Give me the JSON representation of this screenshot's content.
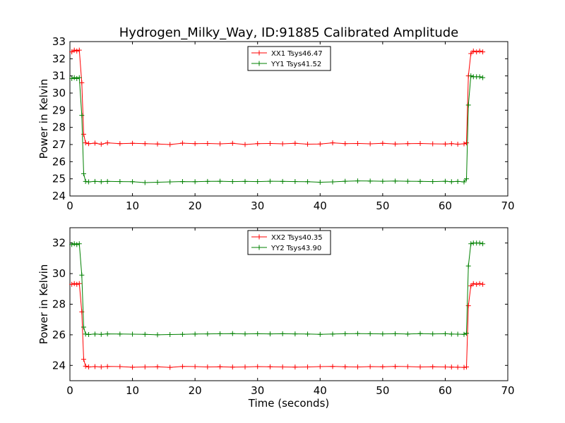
{
  "chart_data": [
    {
      "type": "line",
      "title": "Hydrogen_Milky_Way, ID:91885 Calibrated Amplitude",
      "xlabel": "",
      "ylabel": "Power in Kelvin",
      "xlim": [
        0,
        70
      ],
      "ylim": [
        24,
        33
      ],
      "xticks": [
        0,
        10,
        20,
        30,
        40,
        50,
        60,
        70
      ],
      "yticks": [
        24,
        25,
        26,
        27,
        28,
        29,
        30,
        31,
        32,
        33
      ],
      "legend": "upper-center",
      "grid": false,
      "series": [
        {
          "name": "XX1 Tsys46.47",
          "color": "#ff0000",
          "x": [
            0.3,
            0.7,
            1.1,
            1.5,
            1.9,
            2.2,
            2.5,
            3,
            4,
            5,
            6,
            8,
            10,
            12,
            14,
            16,
            18,
            20,
            22,
            24,
            26,
            28,
            30,
            32,
            34,
            36,
            38,
            40,
            42,
            44,
            46,
            48,
            50,
            52,
            54,
            56,
            58,
            60,
            61,
            62,
            63,
            63.4,
            63.7,
            64.1,
            64.5,
            65,
            65.5,
            66
          ],
          "y": [
            32.4,
            32.5,
            32.45,
            32.5,
            30.6,
            27.6,
            27.1,
            27.05,
            27.08,
            27.02,
            27.1,
            27.05,
            27.07,
            27.05,
            27.03,
            27.0,
            27.08,
            27.05,
            27.06,
            27.04,
            27.07,
            27.0,
            27.05,
            27.06,
            27.04,
            27.07,
            27.02,
            27.03,
            27.1,
            27.05,
            27.06,
            27.04,
            27.07,
            27.03,
            27.05,
            27.06,
            27.04,
            27.03,
            27.05,
            27.02,
            27.04,
            27.1,
            31.0,
            32.3,
            32.45,
            32.4,
            32.45,
            32.4
          ]
        },
        {
          "name": "YY1 Tsys41.52",
          "color": "#008000",
          "x": [
            0.3,
            0.7,
            1.1,
            1.5,
            1.9,
            2.2,
            2.5,
            3,
            4,
            5,
            6,
            8,
            10,
            12,
            14,
            16,
            18,
            20,
            22,
            24,
            26,
            28,
            30,
            32,
            34,
            36,
            38,
            40,
            42,
            44,
            46,
            48,
            50,
            52,
            54,
            56,
            58,
            60,
            61,
            62,
            63,
            63.4,
            63.7,
            64.1,
            64.5,
            65,
            65.5,
            66
          ],
          "y": [
            30.85,
            30.9,
            30.85,
            30.9,
            28.7,
            25.3,
            24.85,
            24.82,
            24.85,
            24.83,
            24.85,
            24.84,
            24.83,
            24.78,
            24.8,
            24.82,
            24.84,
            24.83,
            24.85,
            24.86,
            24.84,
            24.85,
            24.84,
            24.86,
            24.85,
            24.84,
            24.83,
            24.8,
            24.82,
            24.86,
            24.88,
            24.87,
            24.86,
            24.87,
            24.86,
            24.85,
            24.84,
            24.86,
            24.83,
            24.85,
            24.82,
            25.0,
            29.3,
            31.0,
            30.95,
            30.95,
            30.95,
            30.9
          ]
        }
      ]
    },
    {
      "type": "line",
      "title": "",
      "xlabel": "Time (seconds)",
      "ylabel": "Power in Kelvin",
      "xlim": [
        0,
        70
      ],
      "ylim": [
        23,
        33
      ],
      "xticks": [
        0,
        10,
        20,
        30,
        40,
        50,
        60,
        70
      ],
      "yticks": [
        24,
        26,
        28,
        30,
        32
      ],
      "legend": "upper-center",
      "grid": false,
      "series": [
        {
          "name": "XX2 Tsys40.35",
          "color": "#ff0000",
          "x": [
            0.3,
            0.7,
            1.1,
            1.5,
            1.9,
            2.2,
            2.5,
            3,
            4,
            5,
            6,
            8,
            10,
            12,
            14,
            16,
            18,
            20,
            22,
            24,
            26,
            28,
            30,
            32,
            34,
            36,
            38,
            40,
            42,
            44,
            46,
            48,
            50,
            52,
            54,
            56,
            58,
            60,
            61,
            62,
            63,
            63.4,
            63.7,
            64.1,
            64.5,
            65,
            65.5,
            66
          ],
          "y": [
            29.3,
            29.35,
            29.3,
            29.35,
            27.5,
            24.4,
            23.95,
            23.9,
            23.92,
            23.9,
            23.93,
            23.92,
            23.88,
            23.9,
            23.91,
            23.87,
            23.93,
            23.92,
            23.9,
            23.91,
            23.89,
            23.9,
            23.92,
            23.91,
            23.9,
            23.89,
            23.9,
            23.92,
            23.93,
            23.91,
            23.9,
            23.92,
            23.91,
            23.93,
            23.92,
            23.9,
            23.91,
            23.9,
            23.89,
            23.88,
            23.87,
            23.9,
            27.9,
            29.2,
            29.35,
            29.3,
            29.35,
            29.3
          ]
        },
        {
          "name": "YY2 Tsys43.90",
          "color": "#008000",
          "x": [
            0.3,
            0.7,
            1.1,
            1.5,
            1.9,
            2.2,
            2.5,
            3,
            4,
            5,
            6,
            8,
            10,
            12,
            14,
            16,
            18,
            20,
            22,
            24,
            26,
            28,
            30,
            32,
            34,
            36,
            38,
            40,
            42,
            44,
            46,
            48,
            50,
            52,
            54,
            56,
            58,
            60,
            61,
            62,
            63,
            63.4,
            63.7,
            64.1,
            64.5,
            65,
            65.5,
            66
          ],
          "y": [
            31.9,
            31.95,
            31.9,
            31.95,
            29.9,
            26.5,
            26.05,
            26.02,
            26.05,
            26.03,
            26.06,
            26.05,
            26.04,
            26.03,
            26.0,
            26.02,
            26.03,
            26.05,
            26.06,
            26.07,
            26.08,
            26.06,
            26.07,
            26.06,
            26.07,
            26.06,
            26.05,
            26.03,
            26.05,
            26.07,
            26.08,
            26.07,
            26.06,
            26.07,
            26.05,
            26.08,
            26.06,
            26.07,
            26.05,
            26.04,
            26.03,
            26.1,
            30.5,
            31.95,
            32.0,
            32.0,
            32.0,
            31.95
          ]
        }
      ]
    }
  ]
}
